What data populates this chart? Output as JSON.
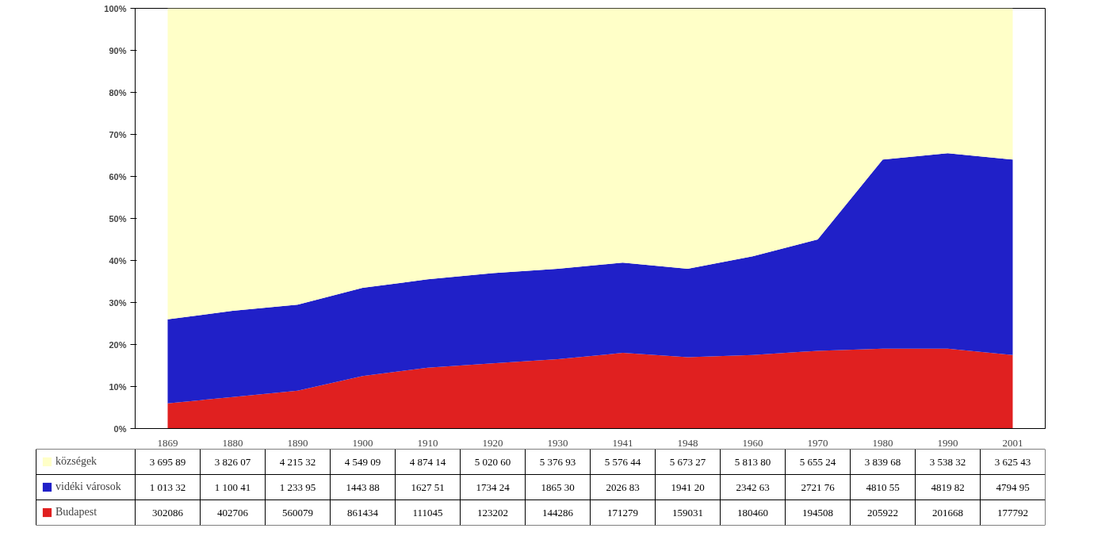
{
  "chart_data": [
    {
      "type": "area",
      "stacked": true,
      "legend": "bottom left",
      "categories": [
        "1869",
        "1880",
        "1890",
        "1900",
        "1910",
        "1920",
        "1930",
        "1941",
        "1948",
        "1960",
        "1970",
        "1980",
        "1990",
        "2001"
      ],
      "series": [
        {
          "name": "Budapest",
          "color": "#e02020",
          "values": [
            6,
            7.5,
            9,
            12.5,
            14.5,
            15.5,
            16.5,
            18,
            17,
            17.5,
            18.5,
            19,
            19,
            17.5
          ]
        },
        {
          "name": "vidéki városok",
          "color": "#2020c8",
          "values": [
            20,
            20.5,
            20.5,
            21,
            21,
            21.5,
            21.5,
            21.5,
            21,
            23.5,
            26.5,
            45,
            46.5,
            46.5
          ]
        },
        {
          "name": "községek",
          "color": "#ffffc8",
          "values": [
            74,
            72,
            70.5,
            66.5,
            64.5,
            63,
            62,
            60.5,
            62,
            59,
            55,
            36,
            34.5,
            36
          ]
        }
      ],
      "ylim": [
        0,
        100
      ],
      "yticks": [
        {
          "value": 0,
          "label": "0%"
        },
        {
          "value": 10,
          "label": "10%"
        },
        {
          "value": 20,
          "label": "20%"
        },
        {
          "value": 30,
          "label": "30%"
        },
        {
          "value": 40,
          "label": "40%"
        },
        {
          "value": 50,
          "label": "50%"
        },
        {
          "value": 60,
          "label": "60%"
        },
        {
          "value": 70,
          "label": "70%"
        },
        {
          "value": 80,
          "label": "80%"
        },
        {
          "value": 90,
          "label": "90%"
        },
        {
          "value": 100,
          "label": "100%"
        }
      ]
    },
    {
      "type": "other",
      "annotations": [
        "3 695 89",
        "3 826 07",
        "4 215 32",
        "4 549 09",
        "4 874 14",
        "5 020 60",
        "5 376 93",
        "5 576 44",
        "5 673 27",
        "5 813 80",
        "5 655 24",
        "3 839 68",
        "3 538 32",
        "3 625 43",
        "1 013 32",
        "1 100 41",
        "1 233 95",
        "1443 88",
        "1627 51",
        "1734 24",
        "1865 30",
        "2026 83",
        "1941 20",
        "2342 63",
        "2721 76",
        "4810 55",
        "4819 82",
        "4794 95",
        "302086",
        "402706",
        "560079",
        "861434",
        "111045",
        "123202",
        "144286",
        "171279",
        "159031",
        "180460",
        "194508",
        "205922",
        "201668",
        "177792"
      ]
    }
  ]
}
